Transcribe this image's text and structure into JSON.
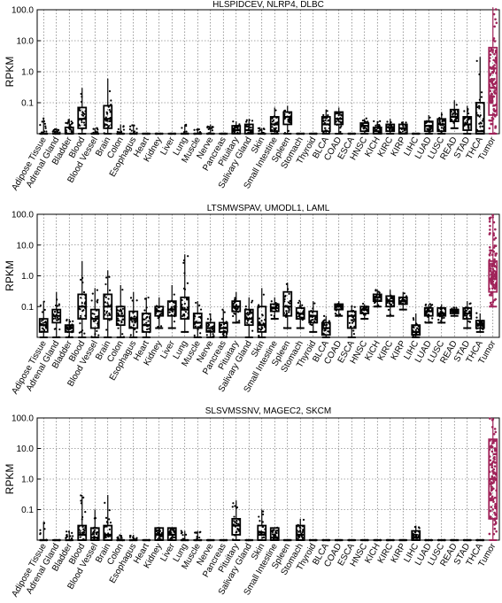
{
  "chart_data": [
    {
      "type": "box",
      "title": "HLSPIDCEV, NLRP4, DLBC",
      "ylabel": "RPKM",
      "yscale": "log",
      "ylim": [
        0.01,
        100
      ],
      "yticks": [
        "0.1",
        "1.0",
        "10.0",
        "100.0"
      ],
      "grid": true,
      "highlight_category": "Tumor",
      "categories": [
        "Adipose Tissue",
        "Adrenal Gland",
        "Bladder",
        "Blood",
        "Blood Vessel",
        "Brain",
        "Colon",
        "Esophagus",
        "Heart",
        "Kidney",
        "Liver",
        "Lung",
        "Muscle",
        "Nerve",
        "Pancreas",
        "Pituitary",
        "Salivary Gland",
        "Skin",
        "Small Intestine",
        "Spleen",
        "Stomach",
        "Thyroid",
        "BLCA",
        "COAD",
        "ESCA",
        "HNSC",
        "KICH",
        "KIRC",
        "KIRP",
        "LIHC",
        "LUAD",
        "LUSC",
        "READ",
        "STAD",
        "THCA",
        "Tumor"
      ],
      "boxes": [
        [
          0.01,
          0.01,
          0.01,
          0.01,
          0.03
        ],
        [
          0.01,
          0.01,
          0.01,
          0.01,
          0.015
        ],
        [
          0.01,
          0.01,
          0.01,
          0.016,
          0.03
        ],
        [
          0.01,
          0.015,
          0.03,
          0.07,
          0.3
        ],
        [
          0.01,
          0.01,
          0.01,
          0.01,
          0.015
        ],
        [
          0.01,
          0.015,
          0.03,
          0.08,
          0.6
        ],
        [
          0.01,
          0.01,
          0.01,
          0.01,
          0.02
        ],
        [
          0.01,
          0.01,
          0.01,
          0.01,
          0.02
        ],
        [
          0.01,
          0.01,
          0.01,
          0.01,
          0.01
        ],
        [
          0.01,
          0.01,
          0.01,
          0.01,
          0.01
        ],
        [
          0.01,
          0.01,
          0.01,
          0.01,
          0.01
        ],
        [
          0.01,
          0.01,
          0.01,
          0.01,
          0.02
        ],
        [
          0.01,
          0.01,
          0.01,
          0.01,
          0.015
        ],
        [
          0.01,
          0.01,
          0.01,
          0.01,
          0.02
        ],
        [
          0.01,
          0.01,
          0.01,
          0.01,
          0.01
        ],
        [
          0.01,
          0.01,
          0.013,
          0.018,
          0.025
        ],
        [
          0.01,
          0.01,
          0.013,
          0.02,
          0.03
        ],
        [
          0.01,
          0.01,
          0.01,
          0.01,
          0.015
        ],
        [
          0.01,
          0.012,
          0.02,
          0.035,
          0.07
        ],
        [
          0.01,
          0.02,
          0.035,
          0.05,
          0.08
        ],
        [
          0.01,
          0.01,
          0.01,
          0.01,
          0.01
        ],
        [
          0.01,
          0.01,
          0.01,
          0.01,
          0.01
        ],
        [
          0.01,
          0.012,
          0.02,
          0.035,
          0.06
        ],
        [
          0.01,
          0.02,
          0.03,
          0.05,
          0.07
        ],
        [
          0.01,
          0.01,
          0.01,
          0.01,
          0.01
        ],
        [
          0.01,
          0.012,
          0.018,
          0.022,
          0.03
        ],
        [
          0.01,
          0.01,
          0.012,
          0.016,
          0.025
        ],
        [
          0.01,
          0.012,
          0.016,
          0.02,
          0.03
        ],
        [
          0.01,
          0.01,
          0.015,
          0.02,
          0.025
        ],
        [
          0.01,
          0.01,
          0.01,
          0.01,
          0.01
        ],
        [
          0.01,
          0.012,
          0.018,
          0.025,
          0.04
        ],
        [
          0.01,
          0.012,
          0.02,
          0.03,
          0.05
        ],
        [
          0.015,
          0.025,
          0.035,
          0.06,
          0.12
        ],
        [
          0.01,
          0.013,
          0.02,
          0.035,
          0.08
        ],
        [
          0.01,
          0.01,
          0.012,
          0.1,
          3.0
        ],
        [
          0.01,
          0.04,
          0.3,
          6.0,
          120
        ]
      ]
    },
    {
      "type": "box",
      "title": "LTSMWSPAV, UMODL1, LAML",
      "ylabel": "RPKM",
      "yscale": "log",
      "ylim": [
        0.01,
        100
      ],
      "yticks": [
        "0.1",
        "1.0",
        "10.0",
        "100.0"
      ],
      "grid": true,
      "highlight_category": "Tumor",
      "categories": [
        "Adipose Tissue",
        "Adrenal Gland",
        "Bladder",
        "Blood",
        "Blood Vessel",
        "Brain",
        "Colon",
        "Esophagus",
        "Heart",
        "Kidney",
        "Liver",
        "Lung",
        "Muscle",
        "Nerve",
        "Pancreas",
        "Pituitary",
        "Salivary Gland",
        "Skin",
        "Small Intestine",
        "Spleen",
        "Stomach",
        "Thyroid",
        "BLCA",
        "COAD",
        "ESCA",
        "HNSC",
        "KICH",
        "KIRC",
        "KIRP",
        "LIHC",
        "LUAD",
        "LUSC",
        "READ",
        "STAD",
        "THCA",
        "Tumor"
      ],
      "boxes": [
        [
          0.01,
          0.015,
          0.025,
          0.04,
          0.15
        ],
        [
          0.01,
          0.03,
          0.05,
          0.08,
          0.3
        ],
        [
          0.01,
          0.015,
          0.02,
          0.025,
          0.04
        ],
        [
          0.01,
          0.04,
          0.1,
          0.25,
          3.0
        ],
        [
          0.01,
          0.02,
          0.04,
          0.08,
          0.4
        ],
        [
          0.01,
          0.04,
          0.1,
          0.25,
          1.5
        ],
        [
          0.01,
          0.025,
          0.05,
          0.1,
          0.5
        ],
        [
          0.01,
          0.02,
          0.04,
          0.07,
          0.3
        ],
        [
          0.01,
          0.015,
          0.025,
          0.06,
          0.2
        ],
        [
          0.02,
          0.05,
          0.07,
          0.1,
          0.2
        ],
        [
          0.02,
          0.05,
          0.08,
          0.15,
          0.5
        ],
        [
          0.015,
          0.04,
          0.08,
          0.2,
          5.0
        ],
        [
          0.01,
          0.02,
          0.03,
          0.06,
          0.15
        ],
        [
          0.01,
          0.015,
          0.02,
          0.03,
          0.06
        ],
        [
          0.01,
          0.015,
          0.02,
          0.03,
          0.08
        ],
        [
          0.03,
          0.07,
          0.1,
          0.15,
          0.3
        ],
        [
          0.01,
          0.025,
          0.04,
          0.08,
          0.2
        ],
        [
          0.01,
          0.015,
          0.025,
          0.1,
          0.4
        ],
        [
          0.04,
          0.07,
          0.09,
          0.12,
          0.2
        ],
        [
          0.02,
          0.05,
          0.1,
          0.3,
          0.6
        ],
        [
          0.02,
          0.04,
          0.06,
          0.09,
          0.15
        ],
        [
          0.015,
          0.03,
          0.05,
          0.07,
          0.15
        ],
        [
          0.01,
          0.012,
          0.02,
          0.03,
          0.05
        ],
        [
          0.05,
          0.08,
          0.1,
          0.12,
          0.15
        ],
        [
          0.01,
          0.02,
          0.05,
          0.07,
          0.1
        ],
        [
          0.04,
          0.06,
          0.08,
          0.1,
          0.12
        ],
        [
          0.1,
          0.15,
          0.2,
          0.25,
          0.35
        ],
        [
          0.05,
          0.1,
          0.15,
          0.22,
          0.35
        ],
        [
          0.08,
          0.12,
          0.15,
          0.2,
          0.3
        ],
        [
          0.01,
          0.012,
          0.015,
          0.025,
          0.06
        ],
        [
          0.03,
          0.05,
          0.07,
          0.09,
          0.12
        ],
        [
          0.03,
          0.05,
          0.06,
          0.09,
          0.12
        ],
        [
          0.05,
          0.06,
          0.07,
          0.08,
          0.1
        ],
        [
          0.02,
          0.04,
          0.06,
          0.09,
          0.15
        ],
        [
          0.015,
          0.02,
          0.025,
          0.035,
          0.06
        ],
        [
          0.1,
          0.3,
          0.8,
          3.0,
          100
        ]
      ]
    },
    {
      "type": "box",
      "title": "SLSVMSSNV, MAGEC2, SKCM",
      "ylabel": "RPKM",
      "yscale": "log",
      "ylim": [
        0.01,
        100
      ],
      "yticks": [
        "0.1",
        "1.0",
        "10.0",
        "100.0"
      ],
      "grid": true,
      "highlight_category": "Tumor",
      "categories": [
        "Adipose Tissue",
        "Adrenal Gland",
        "Bladder",
        "Blood",
        "Blood Vessel",
        "Brain",
        "Colon",
        "Esophagus",
        "Heart",
        "Kidney",
        "Liver",
        "Lung",
        "Muscle",
        "Nerve",
        "Pancreas",
        "Pituitary",
        "Salivary Gland",
        "Skin",
        "Small Intestine",
        "Spleen",
        "Stomach",
        "Thyroid",
        "BLCA",
        "COAD",
        "ESCA",
        "HNSC",
        "KICH",
        "KIRC",
        "KIRP",
        "LIHC",
        "LUAD",
        "LUSC",
        "READ",
        "STAD",
        "THCA",
        "Tumor"
      ],
      "boxes": [
        [
          0.01,
          0.01,
          0.01,
          0.01,
          0.04
        ],
        [
          0.01,
          0.01,
          0.01,
          0.01,
          0.01
        ],
        [
          0.01,
          0.01,
          0.01,
          0.01,
          0.02
        ],
        [
          0.01,
          0.01,
          0.015,
          0.03,
          0.3
        ],
        [
          0.01,
          0.01,
          0.012,
          0.025,
          0.1
        ],
        [
          0.01,
          0.01,
          0.015,
          0.03,
          0.3
        ],
        [
          0.01,
          0.01,
          0.01,
          0.01,
          0.015
        ],
        [
          0.01,
          0.01,
          0.01,
          0.01,
          0.015
        ],
        [
          0.01,
          0.01,
          0.01,
          0.01,
          0.01
        ],
        [
          0.01,
          0.01,
          0.015,
          0.025,
          0.025
        ],
        [
          0.01,
          0.01,
          0.015,
          0.025,
          0.025
        ],
        [
          0.01,
          0.01,
          0.01,
          0.01,
          0.02
        ],
        [
          0.01,
          0.01,
          0.01,
          0.01,
          0.02
        ],
        [
          0.01,
          0.01,
          0.01,
          0.01,
          0.01
        ],
        [
          0.01,
          0.01,
          0.01,
          0.01,
          0.01
        ],
        [
          0.01,
          0.015,
          0.03,
          0.05,
          0.2
        ],
        [
          0.01,
          0.01,
          0.01,
          0.01,
          0.01
        ],
        [
          0.01,
          0.01,
          0.015,
          0.03,
          0.1
        ],
        [
          0.01,
          0.01,
          0.012,
          0.025,
          0.025
        ],
        [
          0.01,
          0.01,
          0.01,
          0.01,
          0.01
        ],
        [
          0.01,
          0.01,
          0.015,
          0.03,
          0.05
        ],
        [
          0.01,
          0.01,
          0.01,
          0.01,
          0.01
        ],
        [
          0.01,
          0.01,
          0.01,
          0.01,
          0.01
        ],
        [
          0.01,
          0.01,
          0.01,
          0.01,
          0.01
        ],
        [
          0.01,
          0.01,
          0.01,
          0.01,
          0.01
        ],
        [
          0.01,
          0.01,
          0.01,
          0.01,
          0.01
        ],
        [
          0.01,
          0.01,
          0.01,
          0.01,
          0.01
        ],
        [
          0.01,
          0.01,
          0.01,
          0.01,
          0.01
        ],
        [
          0.01,
          0.01,
          0.01,
          0.01,
          0.01
        ],
        [
          0.01,
          0.01,
          0.012,
          0.02,
          0.03
        ],
        [
          0.01,
          0.01,
          0.01,
          0.01,
          0.01
        ],
        [
          0.01,
          0.01,
          0.01,
          0.01,
          0.01
        ],
        [
          0.01,
          0.01,
          0.01,
          0.01,
          0.01
        ],
        [
          0.01,
          0.01,
          0.01,
          0.01,
          0.01
        ],
        [
          0.01,
          0.01,
          0.01,
          0.01,
          0.01
        ],
        [
          0.01,
          0.05,
          1.0,
          20,
          100
        ]
      ]
    }
  ]
}
